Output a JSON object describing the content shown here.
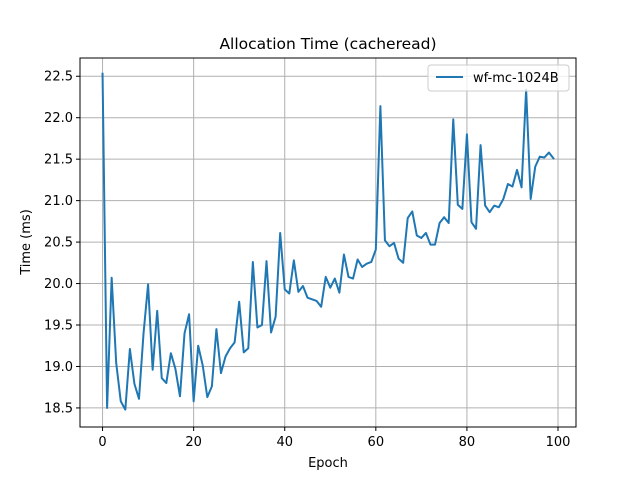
{
  "chart_data": {
    "type": "line",
    "title": "Allocation Time (cacheread)",
    "xlabel": "Epoch",
    "ylabel": "Time (ms)",
    "xlim": [
      -4.95,
      103.95
    ],
    "ylim": [
      18.27,
      22.72
    ],
    "xticks": [
      0,
      20,
      40,
      60,
      80,
      100
    ],
    "yticks": [
      18.5,
      19.0,
      19.5,
      20.0,
      20.5,
      21.0,
      21.5,
      22.0,
      22.5
    ],
    "xtick_labels": [
      "0",
      "20",
      "40",
      "60",
      "80",
      "100"
    ],
    "ytick_labels": [
      "18.5",
      "19.0",
      "19.5",
      "20.0",
      "20.5",
      "21.0",
      "21.5",
      "22.0",
      "22.5"
    ],
    "grid": true,
    "legend_position": "top-right",
    "series": [
      {
        "name": "wf-mc-1024B",
        "color": "#1f77b4",
        "x": [
          0,
          1,
          2,
          3,
          4,
          5,
          6,
          7,
          8,
          9,
          10,
          11,
          12,
          13,
          14,
          15,
          16,
          17,
          18,
          19,
          20,
          21,
          22,
          23,
          24,
          25,
          26,
          27,
          28,
          29,
          30,
          31,
          32,
          33,
          34,
          35,
          36,
          37,
          38,
          39,
          40,
          41,
          42,
          43,
          44,
          45,
          46,
          47,
          48,
          49,
          50,
          51,
          52,
          53,
          54,
          55,
          56,
          57,
          58,
          59,
          60,
          61,
          62,
          63,
          64,
          65,
          66,
          67,
          68,
          69,
          70,
          71,
          72,
          73,
          74,
          75,
          76,
          77,
          78,
          79,
          80,
          81,
          82,
          83,
          84,
          85,
          86,
          87,
          88,
          89,
          90,
          91,
          92,
          93,
          94,
          95,
          96,
          97,
          98,
          99
        ],
        "y": [
          22.53,
          18.5,
          20.07,
          19.04,
          18.58,
          18.48,
          19.21,
          18.79,
          18.61,
          19.4,
          19.99,
          18.96,
          19.67,
          18.86,
          18.8,
          19.16,
          18.97,
          18.64,
          19.4,
          19.63,
          18.58,
          19.25,
          19.01,
          18.63,
          18.76,
          19.45,
          18.92,
          19.12,
          19.22,
          19.29,
          19.78,
          19.17,
          19.22,
          20.26,
          19.47,
          19.5,
          20.27,
          19.41,
          19.6,
          20.61,
          19.93,
          19.88,
          20.28,
          19.9,
          19.97,
          19.83,
          19.81,
          19.79,
          19.72,
          20.08,
          19.95,
          20.06,
          19.89,
          20.35,
          20.08,
          20.06,
          20.29,
          20.2,
          20.24,
          20.26,
          20.41,
          22.14,
          20.52,
          20.45,
          20.49,
          20.3,
          20.25,
          20.79,
          20.87,
          20.58,
          20.55,
          20.61,
          20.47,
          20.47,
          20.73,
          20.8,
          20.73,
          21.98,
          20.95,
          20.9,
          21.8,
          20.74,
          20.66,
          21.67,
          20.94,
          20.86,
          20.94,
          20.92,
          21.02,
          21.2,
          21.17,
          21.37,
          21.16,
          22.34,
          21.02,
          21.41,
          21.53,
          21.52,
          21.58,
          21.51
        ]
      }
    ]
  }
}
